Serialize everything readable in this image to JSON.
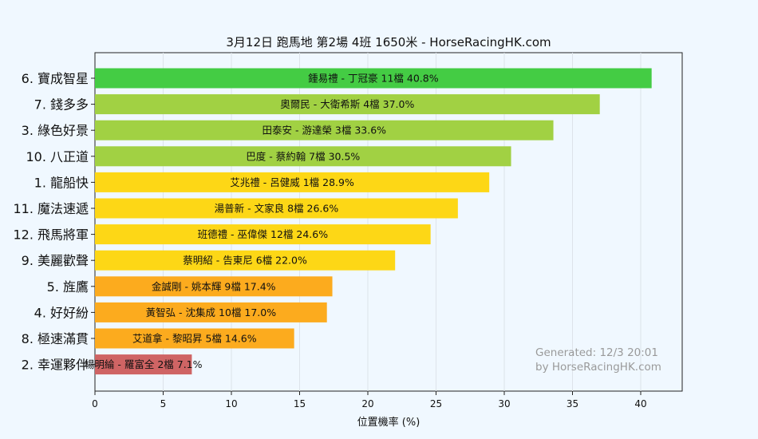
{
  "chart_data": {
    "type": "bar",
    "orientation": "horizontal",
    "title": "3月12日  跑馬地  第2場  4班  1650米 - HorseRacingHK.com",
    "xlabel": "位置機率 (%)",
    "ylabel": "",
    "xlim": [
      0,
      43
    ],
    "xticks": [
      0,
      5,
      10,
      15,
      20,
      25,
      30,
      35,
      40
    ],
    "grid": true,
    "categories": [
      "6. 寶成智星",
      "7. 錢多多",
      "3. 綠色好景",
      "10. 八正道",
      "1. 龍船快",
      "11. 魔法速遞",
      "12. 飛馬將軍",
      "9. 美麗歡聲",
      "5. 旌鷹",
      "4. 好好紛",
      "8. 極速滿貫",
      "2. 幸運夥伴"
    ],
    "values": [
      40.8,
      37.0,
      33.6,
      30.5,
      28.9,
      26.6,
      24.6,
      22.0,
      17.4,
      17.0,
      14.6,
      7.1
    ],
    "bar_labels": [
      "鍾易禮 - 丁冠豪 11檔  40.8%",
      "奧爾民 - 大衛希斯 4檔  37.0%",
      "田泰安 - 游達榮 3檔  33.6%",
      "巴度 - 蔡約翰 7檔  30.5%",
      "艾兆禮 - 呂健威 1檔  28.9%",
      "湯普新 - 文家良 8檔  26.6%",
      "班德禮 - 巫偉傑 12檔  24.6%",
      "蔡明紹 - 告東尼 6檔  22.0%",
      "金誠剛 - 姚本輝 9檔  17.4%",
      "黃智弘 - 沈集成 10檔  17.0%",
      "艾道拿 - 黎昭昇 5檔  14.6%",
      "楊明綸 - 羅富全 2檔  7.1%"
    ],
    "colors": [
      "#44cc44",
      "#a1d143",
      "#a1d143",
      "#a1d143",
      "#fdd716",
      "#fdd716",
      "#fdd716",
      "#fdd716",
      "#fcab1e",
      "#fcab1e",
      "#fcab1e",
      "#cf6464"
    ],
    "annotations": [
      "Generated: 12/3 20:01",
      "by HorseRacingHK.com"
    ]
  }
}
